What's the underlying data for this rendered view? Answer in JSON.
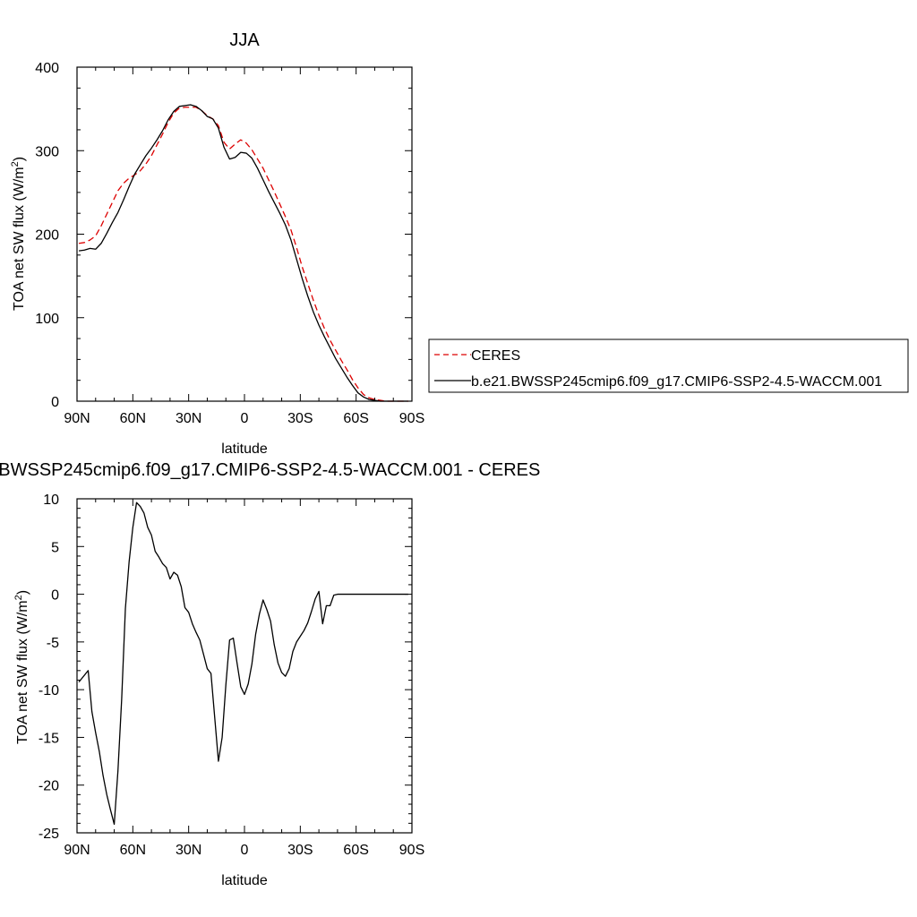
{
  "colors": {
    "model": "#000000",
    "obs": "#dd0000",
    "background": "#ffffff"
  },
  "chart_data": [
    {
      "type": "line",
      "title": "JJA",
      "xlabel": "latitude",
      "ylabel": "TOA net SW flux (W/m",
      "ylabel_sup": "2",
      "ylabel_tail": ")",
      "xlim": [
        90,
        -90
      ],
      "ylim": [
        0,
        400
      ],
      "xticks": [
        90,
        60,
        30,
        0,
        -30,
        -60,
        -90
      ],
      "xtick_labels": [
        "90N",
        "60N",
        "30N",
        "0",
        "30S",
        "60S",
        "90S"
      ],
      "yticks": [
        0,
        100,
        200,
        300,
        400
      ],
      "ytick_labels": [
        "0",
        "100",
        "200",
        "300",
        "400"
      ],
      "grid": false,
      "legend_position": "right",
      "series": [
        {
          "name": "CERES",
          "style": "dashed",
          "color": "#dd0000",
          "x": [
            89,
            86,
            83,
            80,
            77,
            74,
            71,
            68,
            65,
            62,
            59,
            56,
            53,
            50,
            47,
            44,
            41,
            38,
            35,
            32,
            29,
            26,
            23,
            20,
            17,
            14,
            11,
            8,
            5,
            2,
            -1,
            -4,
            -7,
            -10,
            -13,
            -16,
            -19,
            -22,
            -25,
            -28,
            -31,
            -34,
            -37,
            -40,
            -43,
            -46,
            -49,
            -52,
            -55,
            -58,
            -61,
            -64,
            -67,
            -70,
            -73,
            -76,
            -79,
            -82,
            -85,
            -88
          ],
          "y": [
            189,
            190,
            193,
            198,
            210,
            224,
            238,
            252,
            261,
            267,
            271,
            276,
            284,
            294,
            307,
            320,
            334,
            345,
            351,
            352,
            352,
            352,
            348,
            342,
            338,
            330,
            310,
            302,
            308,
            313,
            309,
            301,
            290,
            279,
            265,
            251,
            236,
            221,
            205,
            184,
            161,
            141,
            121,
            103,
            87,
            73,
            61,
            49,
            38,
            26,
            16,
            8,
            4,
            2,
            1,
            0,
            0,
            0,
            0,
            0
          ]
        },
        {
          "name": "b.e21.BWSSP245cmip6.f09_g17.CMIP6-SSP2-4.5-WACCM.001",
          "style": "solid",
          "color": "#000000",
          "x": [
            89,
            86,
            83,
            80,
            77,
            74,
            71,
            68,
            65,
            62,
            59,
            56,
            53,
            50,
            47,
            44,
            41,
            38,
            35,
            32,
            29,
            26,
            23,
            20,
            17,
            14,
            11,
            8,
            5,
            2,
            -1,
            -4,
            -7,
            -10,
            -13,
            -16,
            -19,
            -22,
            -25,
            -28,
            -31,
            -34,
            -37,
            -40,
            -43,
            -46,
            -49,
            -52,
            -55,
            -58,
            -61,
            -64,
            -67,
            -70,
            -73,
            -76,
            -79,
            -82,
            -85,
            -88
          ],
          "y": [
            180,
            181,
            183,
            182,
            189,
            201,
            214,
            226,
            241,
            257,
            272,
            283,
            294,
            303,
            313,
            324,
            337,
            347,
            353,
            354,
            355,
            353,
            348,
            341,
            338,
            327,
            304,
            290,
            292,
            298,
            297,
            291,
            279,
            265,
            251,
            238,
            225,
            211,
            193,
            170,
            147,
            126,
            107,
            91,
            77,
            64,
            51,
            40,
            29,
            19,
            10,
            5,
            2,
            1,
            0,
            0,
            0,
            0,
            0,
            0
          ]
        }
      ]
    },
    {
      "type": "line",
      "title": "b.e21.BWSSP245cmip6.f09_g17.CMIP6-SSP2-4.5-WACCM.001 - CERES",
      "xlabel": "latitude",
      "ylabel": "TOA net SW flux (W/m",
      "ylabel_sup": "2",
      "ylabel_tail": ")",
      "xlim": [
        90,
        -90
      ],
      "ylim": [
        -25,
        10
      ],
      "xticks": [
        90,
        60,
        30,
        0,
        -30,
        -60,
        -90
      ],
      "xtick_labels": [
        "90N",
        "60N",
        "30N",
        "0",
        "30S",
        "60S",
        "90S"
      ],
      "yticks": [
        -25,
        -20,
        -15,
        -10,
        -5,
        0,
        5,
        10
      ],
      "ytick_labels": [
        "-25",
        "-20",
        "-15",
        "-10",
        "-5",
        "0",
        "5",
        "10"
      ],
      "grid": false,
      "series": [
        {
          "style": "solid",
          "color": "#000000",
          "x": [
            89,
            84,
            82,
            80,
            78,
            76,
            74,
            72,
            70,
            68,
            66,
            64,
            62,
            60,
            58,
            56,
            54,
            52,
            50,
            48,
            46,
            44,
            42,
            40,
            38,
            36,
            34,
            32,
            30,
            28,
            26,
            24,
            22,
            20,
            18,
            16,
            14,
            12,
            10,
            8,
            6,
            4,
            2,
            0,
            -2,
            -4,
            -6,
            -8,
            -10,
            -12,
            -14,
            -16,
            -18,
            -20,
            -22,
            -24,
            -26,
            -28,
            -30,
            -32,
            -34,
            -36,
            -38,
            -40,
            -42,
            -44,
            -46,
            -48,
            -50,
            -52,
            -54,
            -56,
            -58,
            -60,
            -62,
            -64,
            -66,
            -68,
            -70,
            -72,
            -74,
            -76,
            -78,
            -80,
            -82,
            -84,
            -86,
            -88
          ],
          "y": [
            -9.2,
            -8.0,
            -12.3,
            -14.5,
            -16.5,
            -19.0,
            -21.0,
            -22.6,
            -24.1,
            -18.5,
            -11.0,
            -1.5,
            3.4,
            7.0,
            9.6,
            9.2,
            8.5,
            7.0,
            6.2,
            4.5,
            3.9,
            3.2,
            2.8,
            1.6,
            2.3,
            2.0,
            0.8,
            -1.4,
            -1.9,
            -3.1,
            -4.0,
            -4.8,
            -6.3,
            -7.8,
            -8.3,
            -12.9,
            -17.5,
            -15.0,
            -9.5,
            -4.8,
            -4.6,
            -7.2,
            -9.7,
            -10.5,
            -9.4,
            -7.3,
            -4.2,
            -2.1,
            -0.6,
            -1.6,
            -2.8,
            -5.3,
            -7.2,
            -8.2,
            -8.6,
            -7.8,
            -6.0,
            -5.0,
            -4.4,
            -3.8,
            -3.0,
            -1.8,
            -0.5,
            0.3,
            -3.1,
            -1.2,
            -1.2,
            -0.1,
            0.0,
            0.0,
            0.0,
            0.0,
            0.0,
            0.0,
            0.0,
            0.0,
            0.0,
            0.0,
            0.0,
            0.0,
            0.0,
            0.0,
            0.0,
            0.0,
            0.0,
            0.0,
            0.0,
            0.0
          ]
        }
      ]
    }
  ]
}
